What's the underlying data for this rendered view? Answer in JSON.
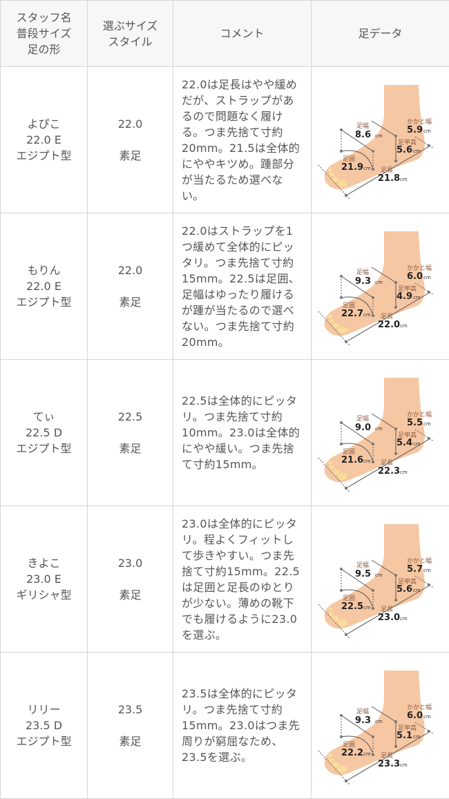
{
  "header": {
    "col1": [
      "スタッフ名",
      "普段サイズ",
      "足の形"
    ],
    "col2": [
      "選ぶサイズ",
      "スタイル"
    ],
    "col3": "コメント",
    "col4": "足データ"
  },
  "foot_labels": {
    "width": "足幅",
    "heel": "かかと幅",
    "instep": "足甲高",
    "girth": "足囲",
    "length": "足長",
    "unit": "cm"
  },
  "colors": {
    "skin": "#f6c7a3",
    "line": "#555555",
    "border": "#d4d4d4"
  },
  "rows": [
    {
      "name": "よぴこ",
      "usual": "22.0 E",
      "shape": "エジプト型",
      "size": "22.0",
      "style": "素足",
      "comment": "22.0は足長はやや緩めだが、ストラップがあるので問題なく履ける。つま先捨て寸約20mm。21.5は全体的にややキツめ。踵部分が当たるため選べない。",
      "foot": {
        "width": "8.6",
        "heel": "5.9",
        "instep": "5.6",
        "girth": "21.9",
        "length": "21.8"
      }
    },
    {
      "name": "もりん",
      "usual": "22.0 E",
      "shape": "エジプト型",
      "size": "22.0",
      "style": "素足",
      "comment": "22.0はストラップを1つ緩めて全体的にピッタリ。つま先捨て寸約15mm。22.5は足囲、足幅はゆったり履けるが踵が当たるので選べない。つま先捨て寸約20mm。",
      "foot": {
        "width": "9.3",
        "heel": "6.0",
        "instep": "4.9",
        "girth": "22.7",
        "length": "22.0"
      }
    },
    {
      "name": "てぃ",
      "usual": "22.5 D",
      "shape": "エジプト型",
      "size": "22.5",
      "style": "素足",
      "comment": "22.5は全体的にピッタリ。つま先捨て寸約10mm。23.0は全体的にやや緩い。つま先捨て寸約15mm。",
      "foot": {
        "width": "9.0",
        "heel": "5.5",
        "instep": "5.4",
        "girth": "21.6",
        "length": "22.3"
      }
    },
    {
      "name": "きよこ",
      "usual": "23.0 E",
      "shape": "ギリシャ型",
      "size": "23.0",
      "style": "素足",
      "comment": "23.0は全体的にピッタリ。程よくフィットして歩きやすい。つま先捨て寸約15mm。22.5は足囲と足長のゆとりが少ない。薄めの靴下でも履けるように23.0を選ぶ。",
      "foot": {
        "width": "9.5",
        "heel": "5.7",
        "instep": "5.6",
        "girth": "22.5",
        "length": "23.0"
      }
    },
    {
      "name": "リリー",
      "usual": "23.5 D",
      "shape": "エジプト型",
      "size": "23.5",
      "style": "素足",
      "comment": "23.5は全体的にピッタリ。つま先捨て寸約15mm。23.0はつま先周りが窮屈なため、23.5を選ぶ。",
      "foot": {
        "width": "9.3",
        "heel": "6.0",
        "instep": "5.1",
        "girth": "22.2",
        "length": "23.3"
      }
    }
  ]
}
